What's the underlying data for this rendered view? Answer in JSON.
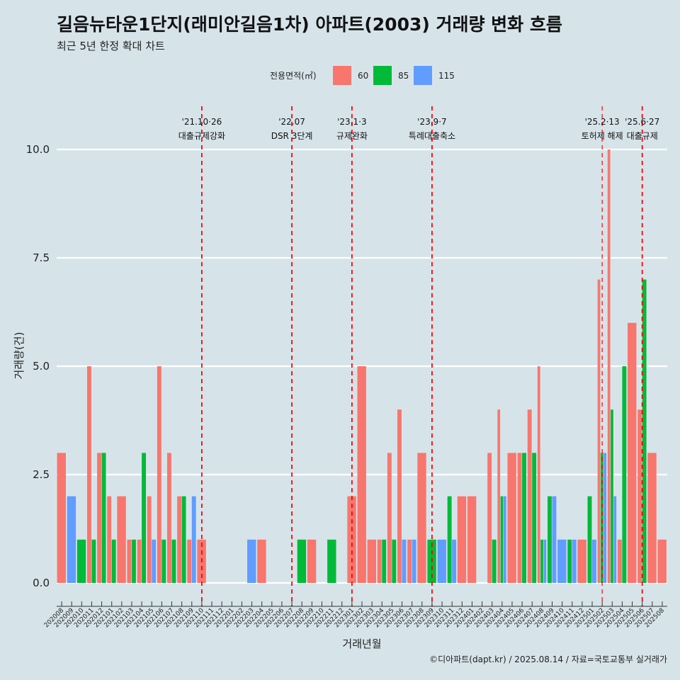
{
  "chart_data": {
    "type": "bar",
    "title": "길음뉴타운1단지(래미안길음1차) 아파트(2003) 거래량 변화 흐름",
    "subtitle": "최근 5년 한정 확대 차트",
    "xlabel": "거래년월",
    "ylabel": "거래량(건)",
    "caption": "©디아파트(dapt.kr) / 2025.08.14 / 자료=국토교통부 실거래가",
    "legend_title": "전용면적(㎡)",
    "legend_position": "top",
    "ylim": [
      0,
      11
    ],
    "yticks": [
      "0.0",
      "2.5",
      "5.0",
      "7.5",
      "10.0"
    ],
    "grid": true,
    "categories": [
      "202008",
      "202009",
      "202010",
      "202011",
      "202012",
      "202101",
      "202102",
      "202103",
      "202104",
      "202105",
      "202106",
      "202107",
      "202108",
      "202109",
      "202110",
      "202111",
      "202112",
      "202201",
      "202202",
      "202203",
      "202204",
      "202205",
      "202206",
      "202207",
      "202208",
      "202209",
      "202210",
      "202211",
      "202212",
      "202301",
      "202302",
      "202303",
      "202304",
      "202305",
      "202306",
      "202307",
      "202308",
      "202309",
      "202310",
      "202311",
      "202312",
      "202401",
      "202402",
      "202403",
      "202404",
      "202405",
      "202406",
      "202407",
      "202408",
      "202409",
      "202410",
      "202411",
      "202412",
      "202501",
      "202502",
      "202503",
      "202504",
      "202505",
      "202506",
      "202507",
      "202508"
    ],
    "series": [
      {
        "name": "60",
        "color": "#f8766d",
        "values": [
          3,
          0,
          0,
          5,
          3,
          2,
          2,
          1,
          1,
          2,
          5,
          3,
          2,
          1,
          1,
          0,
          0,
          0,
          0,
          0,
          1,
          0,
          0,
          0,
          0,
          1,
          0,
          0,
          0,
          2,
          5,
          1,
          1,
          3,
          4,
          1,
          3,
          0,
          0,
          0,
          2,
          2,
          0,
          3,
          4,
          3,
          3,
          4,
          5,
          0,
          0,
          0,
          1,
          0,
          7,
          10,
          1,
          6,
          4,
          3,
          1
        ]
      },
      {
        "name": "85",
        "color": "#00ba38",
        "values": [
          0,
          0,
          1,
          1,
          3,
          1,
          0,
          1,
          3,
          0,
          1,
          1,
          2,
          0,
          0,
          0,
          0,
          0,
          0,
          0,
          0,
          0,
          0,
          0,
          1,
          0,
          0,
          1,
          0,
          0,
          0,
          0,
          1,
          1,
          0,
          0,
          0,
          1,
          0,
          2,
          0,
          0,
          0,
          1,
          2,
          0,
          3,
          3,
          1,
          2,
          0,
          1,
          0,
          2,
          3,
          4,
          5,
          0,
          7,
          0,
          0
        ]
      },
      {
        "name": "115",
        "color": "#619cff",
        "values": [
          0,
          2,
          0,
          0,
          0,
          0,
          0,
          0,
          0,
          1,
          0,
          0,
          0,
          2,
          0,
          0,
          0,
          0,
          0,
          1,
          0,
          0,
          0,
          0,
          0,
          0,
          0,
          0,
          0,
          0,
          0,
          0,
          0,
          0,
          1,
          1,
          0,
          0,
          1,
          1,
          0,
          0,
          0,
          0,
          2,
          0,
          0,
          0,
          1,
          2,
          1,
          1,
          0,
          1,
          3,
          2,
          0,
          0,
          0,
          0,
          0
        ]
      }
    ],
    "annotations": [
      {
        "category": "202110",
        "date": "'21.10·26",
        "label": "대출규제강화"
      },
      {
        "category": "202207",
        "date": "'22.07",
        "label": "DSR 3단계"
      },
      {
        "category": "202301",
        "date": "'23.1·3",
        "label": "규제완화"
      },
      {
        "category": "202309",
        "date": "'23.9·7",
        "label": "특례대출축소"
      },
      {
        "category": "202502",
        "date": "'25.2·13",
        "label": "토허제 해제"
      },
      {
        "category": "202506",
        "date": "'25.6·27",
        "label": "대출규제"
      }
    ]
  }
}
